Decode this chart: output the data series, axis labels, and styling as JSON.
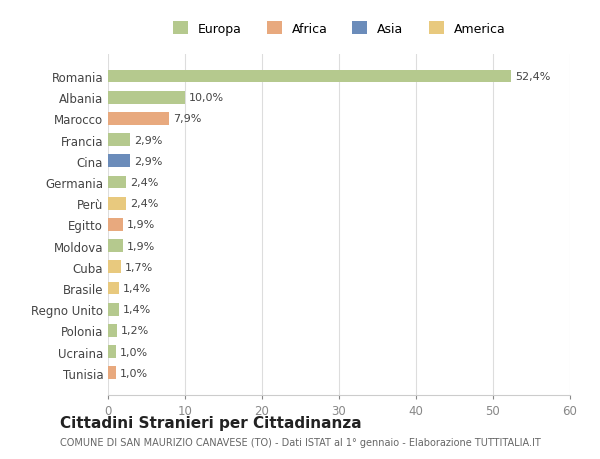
{
  "countries": [
    "Tunisia",
    "Ucraina",
    "Polonia",
    "Regno Unito",
    "Brasile",
    "Cuba",
    "Moldova",
    "Egitto",
    "Perù",
    "Germania",
    "Cina",
    "Francia",
    "Marocco",
    "Albania",
    "Romania"
  ],
  "values": [
    1.0,
    1.0,
    1.2,
    1.4,
    1.4,
    1.7,
    1.9,
    1.9,
    2.4,
    2.4,
    2.9,
    2.9,
    7.9,
    10.0,
    52.4
  ],
  "labels": [
    "1,0%",
    "1,0%",
    "1,2%",
    "1,4%",
    "1,4%",
    "1,7%",
    "1,9%",
    "1,9%",
    "2,4%",
    "2,4%",
    "2,9%",
    "2,9%",
    "7,9%",
    "10,0%",
    "52,4%"
  ],
  "colors": [
    "#e8a97e",
    "#b5c98e",
    "#b5c98e",
    "#b5c98e",
    "#e8c97e",
    "#e8c97e",
    "#b5c98e",
    "#e8a97e",
    "#e8c97e",
    "#b5c98e",
    "#6b8cba",
    "#b5c98e",
    "#e8a97e",
    "#b5c98e",
    "#b5c98e"
  ],
  "legend_labels": [
    "Europa",
    "Africa",
    "Asia",
    "America"
  ],
  "legend_colors": [
    "#b5c98e",
    "#e8a97e",
    "#6b8cba",
    "#e8c97e"
  ],
  "title": "Cittadini Stranieri per Cittadinanza",
  "subtitle": "COMUNE DI SAN MAURIZIO CANAVESE (TO) - Dati ISTAT al 1° gennaio - Elaborazione TUTTITALIA.IT",
  "xlim": [
    0,
    60
  ],
  "xticks": [
    0,
    10,
    20,
    30,
    40,
    50,
    60
  ],
  "background_color": "#ffffff",
  "bar_height": 0.6
}
